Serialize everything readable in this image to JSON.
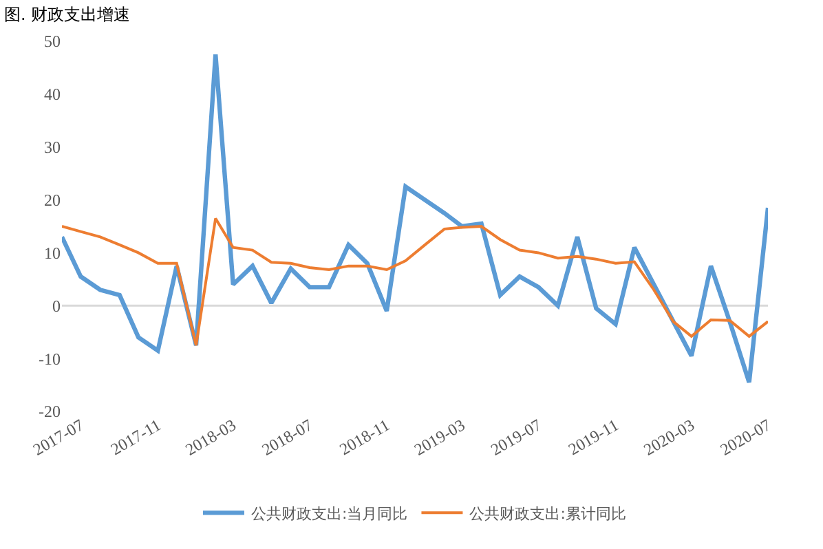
{
  "chart_data": {
    "type": "line",
    "title": "图. 财政支出增速",
    "x": [
      "2017-06",
      "2017-07",
      "2017-08",
      "2017-09",
      "2017-10",
      "2017-11",
      "2017-12",
      "2018-01",
      "2018-02",
      "2018-03",
      "2018-04",
      "2018-05",
      "2018-06",
      "2018-07",
      "2018-08",
      "2018-09",
      "2018-10",
      "2018-11",
      "2018-12",
      "2019-01",
      "2019-02",
      "2019-03",
      "2019-04",
      "2019-05",
      "2019-06",
      "2019-07",
      "2019-08",
      "2019-09",
      "2019-10",
      "2019-11",
      "2019-12",
      "2020-01",
      "2020-02",
      "2020-03",
      "2020-04",
      "2020-05",
      "2020-06",
      "2020-07"
    ],
    "series": [
      {
        "name": "公共财政支出:当月同比",
        "color": "#5b9bd5",
        "values": [
          13,
          5.5,
          3,
          2,
          -6,
          -8.5,
          7.5,
          -7.5,
          47.5,
          4,
          7.5,
          0.5,
          7,
          3.5,
          3.5,
          11.5,
          8,
          -1,
          22.5,
          20,
          17.5,
          15,
          15.5,
          2,
          5.5,
          3.5,
          0,
          13,
          -0.5,
          -3.5,
          11,
          4,
          -3,
          -9.5,
          7.5,
          -3,
          -14.5,
          18.5
        ]
      },
      {
        "name": "公共财政支出:累计同比",
        "color": "#ed7d31",
        "values": [
          15,
          14,
          13,
          11.5,
          10,
          8,
          8,
          -7.5,
          16.5,
          11,
          10.5,
          8.2,
          8,
          7.2,
          6.8,
          7.5,
          7.5,
          6.8,
          8.5,
          11.5,
          14.5,
          14.8,
          15,
          12.5,
          10.5,
          10,
          9,
          9.3,
          8.8,
          8,
          8.3,
          3,
          -3,
          -5.8,
          -2.7,
          -2.8,
          -5.8,
          -3
        ]
      }
    ],
    "xlim": [
      "2017-06",
      "2020-07"
    ],
    "xticks": [
      "2017-07",
      "2017-11",
      "2018-03",
      "2018-07",
      "2018-11",
      "2019-03",
      "2019-07",
      "2019-11",
      "2020-03",
      "2020-07"
    ],
    "ylim": [
      -20,
      50
    ],
    "yticks": [
      -20,
      -10,
      0,
      10,
      20,
      30,
      40,
      50
    ],
    "ref_lines": [
      {
        "axis": "y",
        "value": 0,
        "color": "#d9d9d9"
      }
    ],
    "grid": false,
    "legend": "bottom",
    "marker": "none",
    "line_style": "solid"
  }
}
